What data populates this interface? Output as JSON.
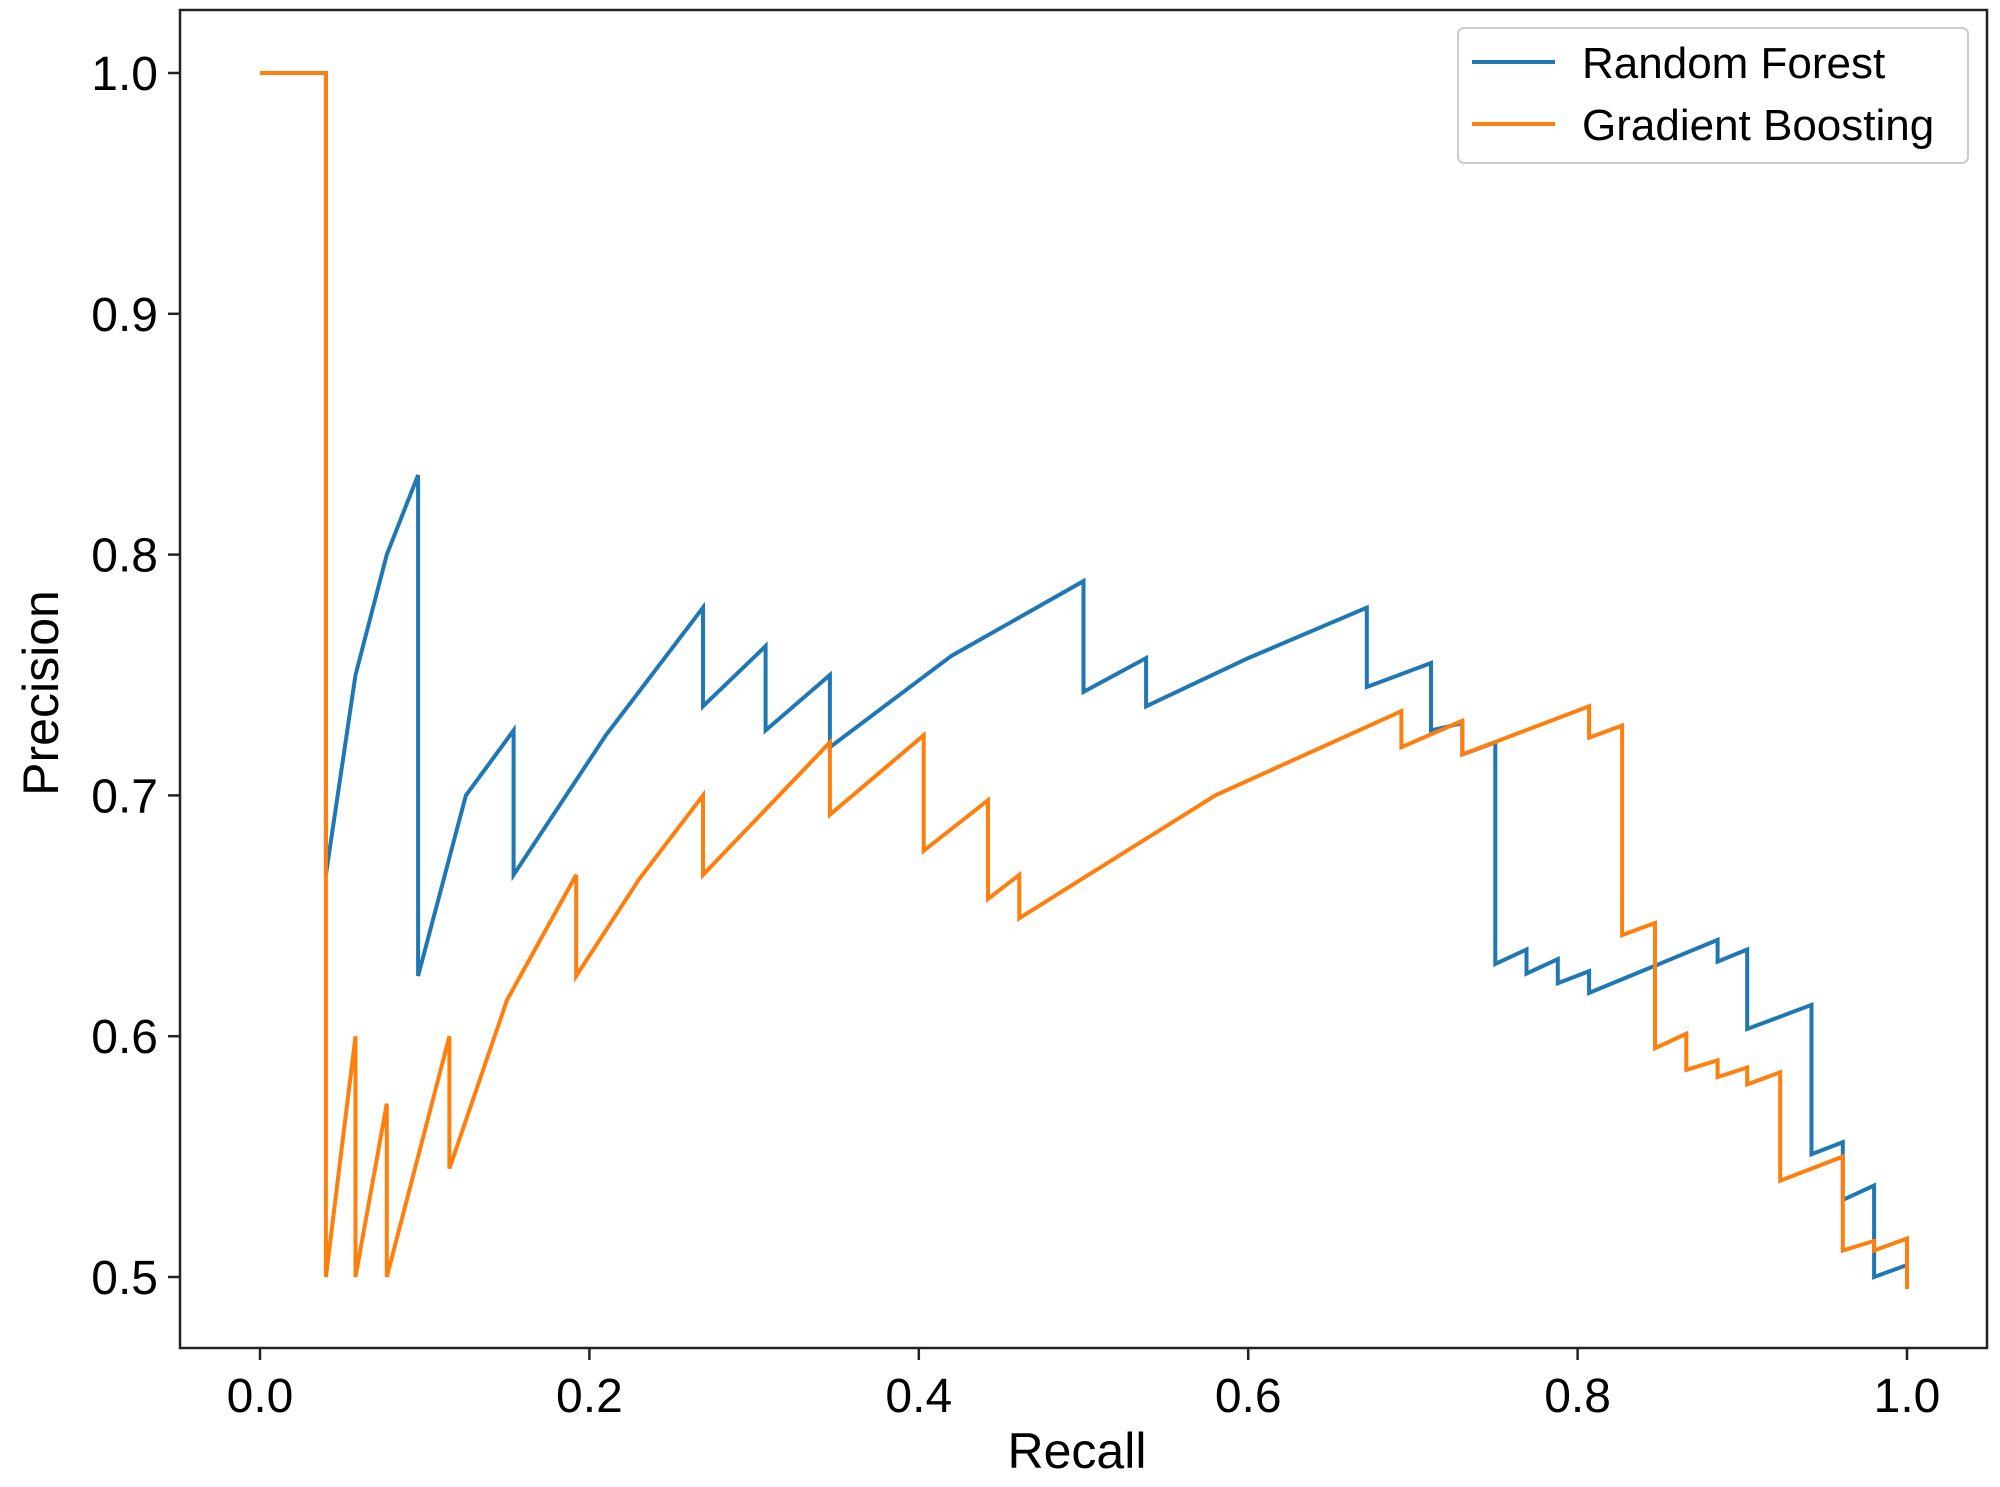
{
  "chart_data": {
    "type": "line",
    "title": "",
    "xlabel": "Recall",
    "ylabel": "Precision",
    "xlim": [
      -0.05,
      1.05
    ],
    "ylim": [
      0.47,
      1.027
    ],
    "xticks": [
      0.0,
      0.2,
      0.4,
      0.6,
      0.8,
      1.0
    ],
    "xtick_labels": [
      "0.0",
      "0.2",
      "0.4",
      "0.6",
      "0.8",
      "1.0"
    ],
    "yticks": [
      0.5,
      0.6,
      0.7,
      0.8,
      0.9,
      1.0
    ],
    "ytick_labels": [
      "0.5",
      "0.6",
      "0.7",
      "0.8",
      "0.9",
      "1.0"
    ],
    "grid": false,
    "legend_placement": "top-right",
    "series": [
      {
        "name": "Random Forest",
        "color": "#1f77b4",
        "x": [
          0,
          0.04,
          0.04,
          0.058,
          0.077,
          0.096,
          0.096,
          0.125,
          0.154,
          0.154,
          0.21,
          0.269,
          0.269,
          0.307,
          0.307,
          0.346,
          0.346,
          0.42,
          0.5,
          0.5,
          0.538,
          0.538,
          0.6,
          0.672,
          0.672,
          0.711,
          0.711,
          0.73,
          0.73,
          0.75,
          0.75,
          0.769,
          0.769,
          0.788,
          0.788,
          0.807,
          0.807,
          0.885,
          0.885,
          0.903,
          0.903,
          0.942,
          0.942,
          0.961,
          0.961,
          0.98,
          0.98,
          1.0
        ],
        "y": [
          1.0,
          1.0,
          0.667,
          0.75,
          0.8,
          0.833,
          0.625,
          0.7,
          0.727,
          0.667,
          0.725,
          0.778,
          0.737,
          0.762,
          0.727,
          0.75,
          0.72,
          0.758,
          0.789,
          0.743,
          0.757,
          0.737,
          0.757,
          0.778,
          0.745,
          0.755,
          0.727,
          0.73,
          0.717,
          0.722,
          0.63,
          0.636,
          0.626,
          0.632,
          0.622,
          0.627,
          0.618,
          0.64,
          0.631,
          0.636,
          0.603,
          0.613,
          0.551,
          0.556,
          0.532,
          0.538,
          0.5,
          0.505
        ]
      },
      {
        "name": "Gradient Boosting",
        "color": "#ff7f0e",
        "x": [
          0,
          0.04,
          0.04,
          0.058,
          0.058,
          0.077,
          0.077,
          0.115,
          0.115,
          0.15,
          0.192,
          0.192,
          0.23,
          0.269,
          0.269,
          0.346,
          0.346,
          0.403,
          0.403,
          0.442,
          0.442,
          0.461,
          0.461,
          0.58,
          0.693,
          0.693,
          0.73,
          0.73,
          0.807,
          0.807,
          0.827,
          0.827,
          0.847,
          0.847,
          0.866,
          0.866,
          0.885,
          0.885,
          0.903,
          0.903,
          0.923,
          0.923,
          0.961,
          0.961,
          0.98,
          0.98,
          1.0,
          1.0
        ],
        "y": [
          1.0,
          1.0,
          0.5,
          0.6,
          0.5,
          0.572,
          0.5,
          0.6,
          0.545,
          0.615,
          0.667,
          0.625,
          0.665,
          0.7,
          0.667,
          0.722,
          0.692,
          0.725,
          0.677,
          0.698,
          0.657,
          0.667,
          0.649,
          0.7,
          0.735,
          0.72,
          0.731,
          0.717,
          0.737,
          0.724,
          0.729,
          0.642,
          0.647,
          0.595,
          0.601,
          0.586,
          0.59,
          0.583,
          0.587,
          0.58,
          0.585,
          0.54,
          0.55,
          0.511,
          0.515,
          0.511,
          0.516,
          0.495
        ]
      }
    ]
  }
}
